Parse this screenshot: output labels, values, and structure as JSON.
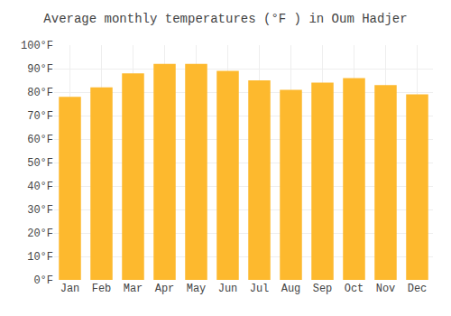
{
  "chart_data": {
    "type": "bar",
    "title": "Average monthly temperatures (°F ) in Oum Hadjer",
    "categories": [
      "Jan",
      "Feb",
      "Mar",
      "Apr",
      "May",
      "Jun",
      "Jul",
      "Aug",
      "Sep",
      "Oct",
      "Nov",
      "Dec"
    ],
    "values": [
      78,
      82,
      88,
      92,
      92,
      89,
      85,
      81,
      84,
      86,
      83,
      79
    ],
    "color": "#FDB92E",
    "ylim": [
      0,
      100
    ],
    "yticks": [
      {
        "value": 0,
        "label": "0°F"
      },
      {
        "value": 10,
        "label": "10°F"
      },
      {
        "value": 20,
        "label": "20°F"
      },
      {
        "value": 30,
        "label": "30°F"
      },
      {
        "value": 40,
        "label": "40°F"
      },
      {
        "value": 50,
        "label": "50°F"
      },
      {
        "value": 60,
        "label": "60°F"
      },
      {
        "value": 70,
        "label": "70°F"
      },
      {
        "value": 80,
        "label": "80°F"
      },
      {
        "value": 90,
        "label": "90°F"
      },
      {
        "value": 100,
        "label": "100°F"
      }
    ],
    "grid": true
  }
}
